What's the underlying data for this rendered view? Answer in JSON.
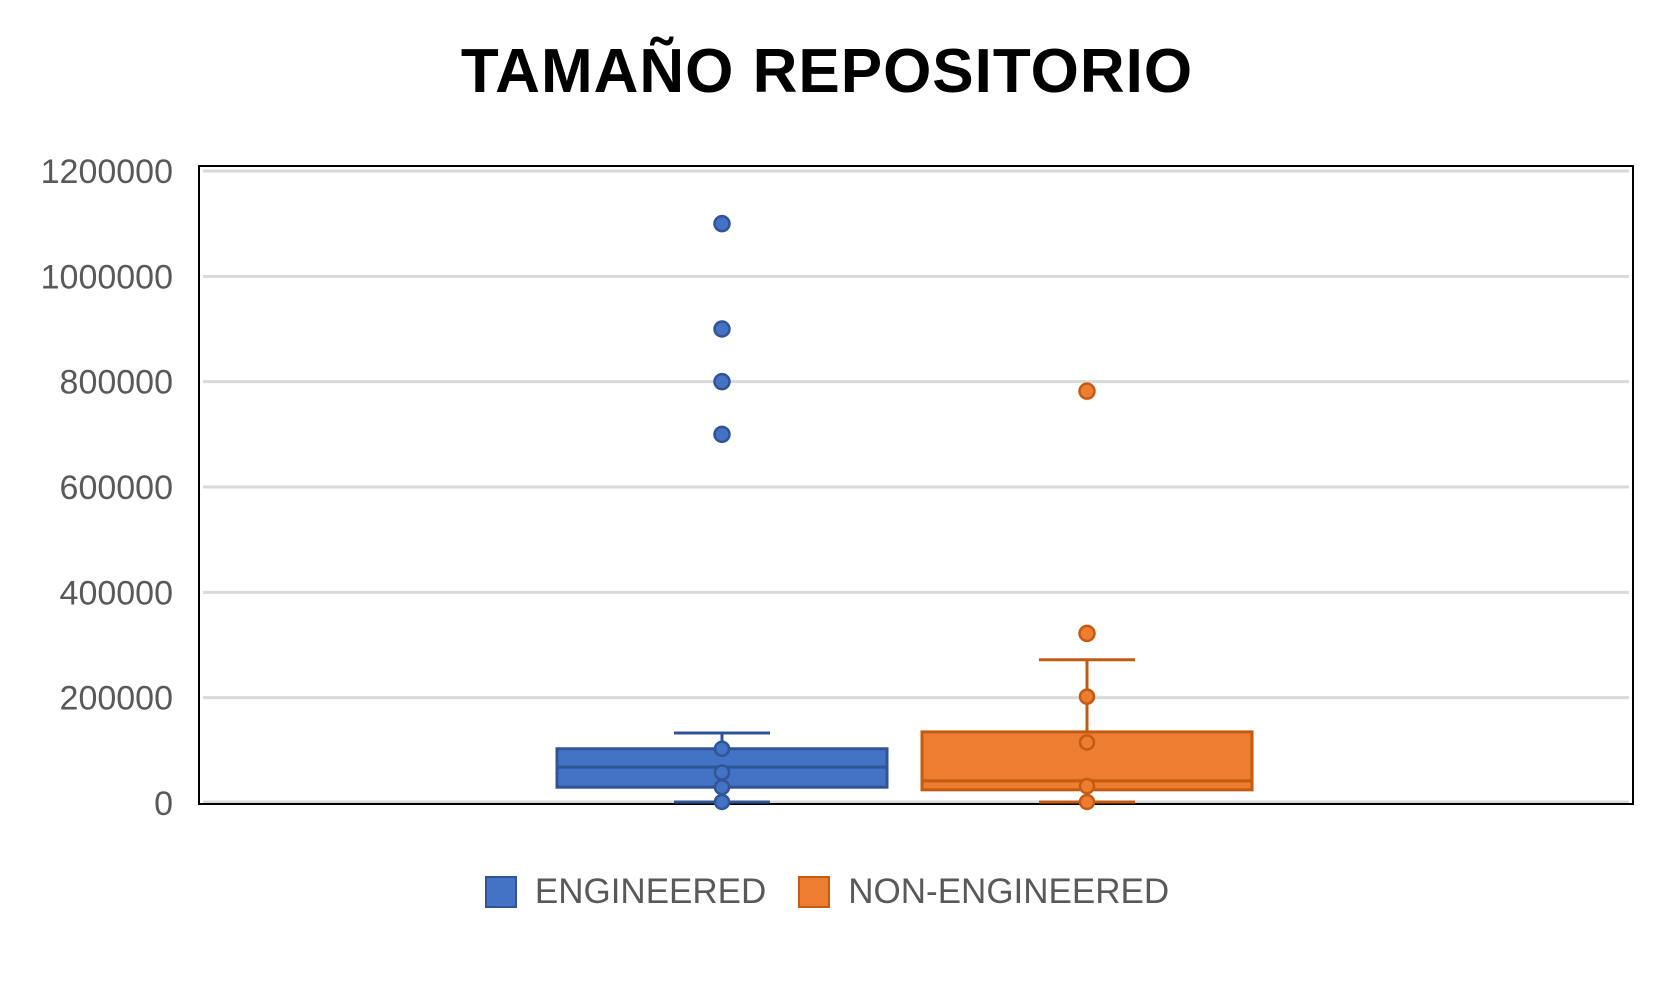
{
  "chart_data": {
    "type": "box",
    "title": "TAMAÑO REPOSITORIO",
    "xlabel": "",
    "ylabel": "",
    "ylim": [
      0,
      1200000
    ],
    "yticks": [
      "0",
      "200000",
      "400000",
      "600000",
      "800000",
      "1000000",
      "1200000"
    ],
    "grid": true,
    "legend_position": "bottom",
    "series": [
      {
        "name": "ENGINEERED",
        "color": "#4472C4",
        "border_color": "#2F5597",
        "whisker_min": 2000,
        "q1": 30000,
        "median": 68000,
        "q3": 103000,
        "whisker_max": 133000,
        "inner_points": [
          2000,
          30000,
          58000,
          103000
        ],
        "outliers": [
          700000,
          800000,
          900000,
          1100000
        ]
      },
      {
        "name": "NON-ENGINEERED",
        "color": "#ED7D31",
        "border_color": "#C55A11",
        "whisker_min": 2000,
        "q1": 25000,
        "median": 42000,
        "q3": 135000,
        "whisker_max": 272000,
        "inner_points": [
          2000,
          32000,
          115000,
          202000
        ],
        "outliers": [
          322000,
          782000
        ]
      }
    ]
  }
}
